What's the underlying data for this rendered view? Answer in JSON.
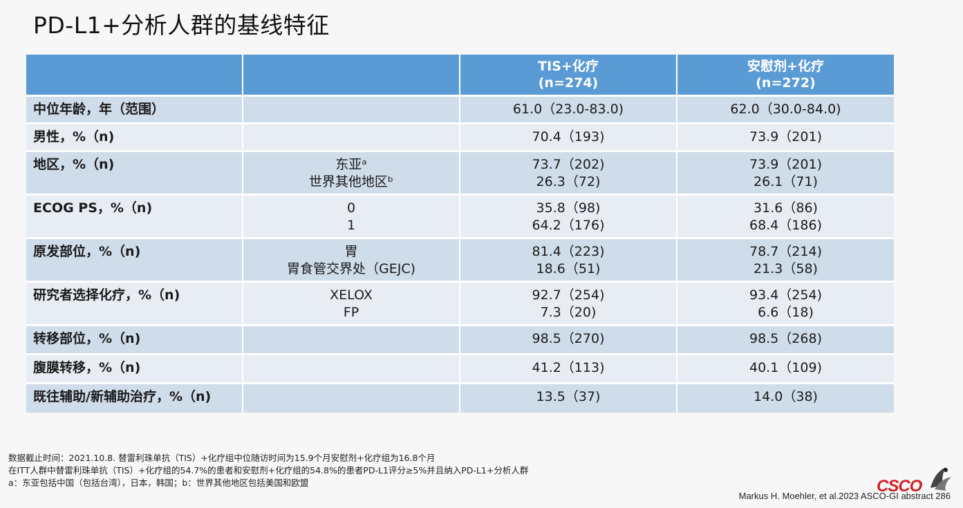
{
  "title": "PD-L1+分析人群的基线特征",
  "table": {
    "header": {
      "col3_line1": "TIS+化疗",
      "col3_line2": "(n=274)",
      "col4_line1": "安慰剂+化疗",
      "col4_line2": "(n=272)"
    },
    "rows": [
      {
        "label": "中位年龄，年（范围）",
        "sub": [],
        "tis": [
          "61.0（23.0-83.0)"
        ],
        "placebo": [
          "62.0（30.0-84.0)"
        ]
      },
      {
        "label": "男性，%（n)",
        "sub": [],
        "tis": [
          "70.4（193)"
        ],
        "placebo": [
          "73.9（201)"
        ]
      },
      {
        "label": "地区，%（n)",
        "sub": [
          "东亚ᵃ",
          "世界其他地区ᵇ"
        ],
        "tis": [
          "73.7（202)",
          "26.3（72)"
        ],
        "placebo": [
          "73.9（201)",
          "26.1（71)"
        ]
      },
      {
        "label": "ECOG PS，%（n)",
        "sub": [
          "0",
          "1"
        ],
        "tis": [
          "35.8（98)",
          "64.2（176)"
        ],
        "placebo": [
          "31.6（86)",
          "68.4（186)"
        ]
      },
      {
        "label": "原发部位，%（n)",
        "sub": [
          "胃",
          "胃食管交界处（GEJC)"
        ],
        "tis": [
          "81.4（223)",
          "18.6（51)"
        ],
        "placebo": [
          "78.7（214)",
          "21.3（58)"
        ]
      },
      {
        "label": "研究者选择化疗，%（n)",
        "sub": [
          "XELOX",
          "FP"
        ],
        "tis": [
          "92.7（254)",
          "7.3（20)"
        ],
        "placebo": [
          "93.4（254)",
          "6.6（18)"
        ]
      },
      {
        "label": "转移部位，%（n)",
        "sub": [],
        "tis": [
          "98.5（270)"
        ],
        "placebo": [
          "98.5（268)"
        ]
      },
      {
        "label": "腹膜转移，%（n)",
        "sub": [],
        "tis": [
          "41.2（113)"
        ],
        "placebo": [
          "40.1（109)"
        ]
      },
      {
        "label": "既往辅助/新辅助治疗，%（n)",
        "sub": [],
        "tis": [
          "13.5（37)"
        ],
        "placebo": [
          "14.0（38)"
        ]
      }
    ]
  },
  "footnotes": [
    "数据截止时间：2021.10.8. 替雷利珠单抗（TIS）+化疗组中位随访时间为15.9个月安慰剂+化疗组为16.8个月",
    "在ITT人群中替雷利珠单抗（TIS）+化疗组的54.7%的患者和安慰剂+化疗组的54.8%的患者PD-L1评分≥5%并且纳入PD-L1+分析人群",
    "a：东亚包括中国（包括台湾），日本，韩国；b：世界其他地区包括美国和欧盟"
  ],
  "citation": "Markus H. Moehler, et al.2023 ASCO-GI abstract 286",
  "logo": {
    "text": "CSCO",
    "color": "#d21f26"
  }
}
